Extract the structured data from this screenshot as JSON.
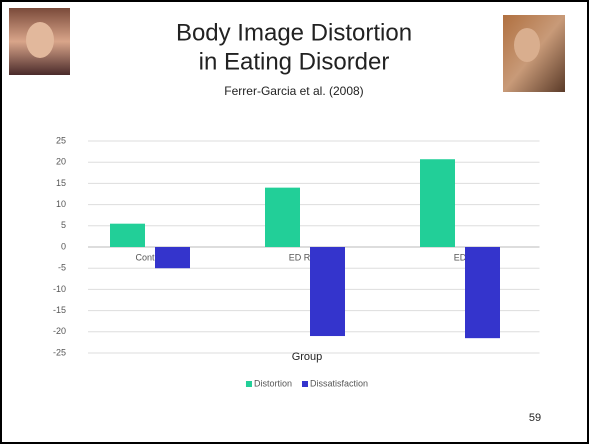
{
  "slide": {
    "title_lines": [
      "Body Image Distortion",
      "in Eating Disorder"
    ],
    "subtitle": "Ferrer-Garcia et al. (2008)",
    "page_number": "59"
  },
  "chart_data": {
    "type": "bar",
    "categories": [
      "Control",
      "ED Risk",
      "ED"
    ],
    "series": [
      {
        "name": "Distortion",
        "color": "#22cf98",
        "values": [
          5.5,
          14,
          20.7
        ]
      },
      {
        "name": "Dissatisfaction",
        "color": "#3434cc",
        "values": [
          -5,
          -21,
          -21.5
        ]
      }
    ],
    "x_label": "Group",
    "ylim": [
      -25,
      25
    ],
    "yticks": [
      25,
      20,
      15,
      10,
      5,
      0,
      -5,
      -10,
      -15,
      -20,
      -25
    ],
    "grid": true,
    "legend": "bottom"
  }
}
